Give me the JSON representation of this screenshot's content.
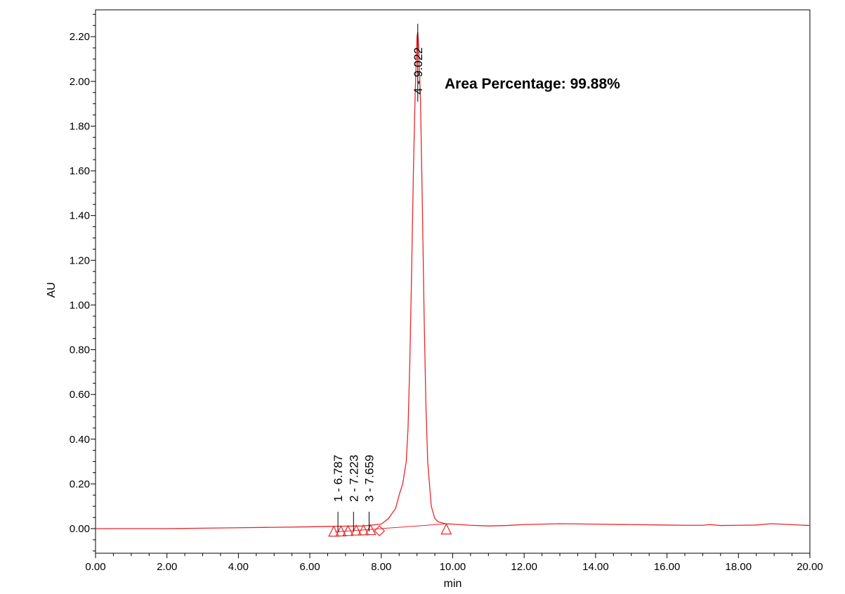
{
  "chart_data": {
    "type": "line",
    "title": "",
    "xlabel": "min",
    "ylabel": "AU",
    "xlim": [
      0,
      20
    ],
    "ylim": [
      -0.11,
      2.32
    ],
    "x_ticks": [
      0,
      2,
      4,
      6,
      8,
      10,
      12,
      14,
      16,
      18,
      20
    ],
    "x_tick_labels": [
      "0.00",
      "2.00",
      "4.00",
      "6.00",
      "8.00",
      "10.00",
      "12.00",
      "14.00",
      "16.00",
      "18.00",
      "20.00"
    ],
    "y_ticks": [
      0,
      0.2,
      0.4,
      0.6,
      0.8,
      1.0,
      1.2,
      1.4,
      1.6,
      1.8,
      2.0,
      2.2
    ],
    "y_tick_labels": [
      "0.00",
      "0.20",
      "0.40",
      "0.60",
      "0.80",
      "1.00",
      "1.20",
      "1.40",
      "1.60",
      "1.80",
      "2.00",
      "2.20"
    ],
    "grid": false,
    "line_color": "#e8262a",
    "series": [
      {
        "name": "",
        "x": [
          0,
          1,
          2,
          3,
          4,
          5,
          6,
          6.5,
          7,
          7.5,
          8,
          8.2,
          8.4,
          8.5,
          8.6,
          8.7,
          8.75,
          8.8,
          8.85,
          8.9,
          8.95,
          9.0,
          9.022,
          9.05,
          9.1,
          9.15,
          9.2,
          9.25,
          9.3,
          9.4,
          9.5,
          9.6,
          9.8,
          10,
          10.5,
          11,
          11.5,
          12,
          13,
          14,
          15,
          16,
          16.5,
          17,
          17.2,
          17.5,
          18,
          18.5,
          18.9,
          19.2,
          19.6,
          20
        ],
        "y": [
          0.0,
          0.0,
          0.0,
          0.002,
          0.004,
          0.006,
          0.008,
          0.01,
          0.011,
          0.012,
          0.02,
          0.045,
          0.09,
          0.15,
          0.2,
          0.3,
          0.45,
          0.75,
          1.15,
          1.6,
          1.95,
          2.2,
          2.22,
          2.15,
          1.9,
          1.45,
          0.95,
          0.55,
          0.3,
          0.1,
          0.045,
          0.03,
          0.022,
          0.02,
          0.015,
          0.012,
          0.014,
          0.018,
          0.022,
          0.02,
          0.018,
          0.016,
          0.015,
          0.015,
          0.018,
          0.014,
          0.015,
          0.016,
          0.022,
          0.02,
          0.017,
          0.014
        ]
      }
    ],
    "baseline": {
      "x": [
        6.7,
        9.85
      ],
      "y": [
        -0.015,
        0.022
      ]
    },
    "peaks": [
      {
        "label": "1 - 6.787",
        "rt": 6.787,
        "apex": 0.011
      },
      {
        "label": "2 - 7.223",
        "rt": 7.223,
        "apex": 0.012
      },
      {
        "label": "3 - 7.659",
        "rt": 7.659,
        "apex": 0.013
      },
      {
        "label": "4 - 9.022",
        "rt": 9.022,
        "apex": 2.22
      }
    ],
    "markers": [
      {
        "shape": "triangle",
        "x": 6.67,
        "y": -0.015
      },
      {
        "shape": "triangle",
        "x": 6.87,
        "y": -0.014
      },
      {
        "shape": "triangle",
        "x": 7.07,
        "y": -0.012
      },
      {
        "shape": "triangle",
        "x": 7.3,
        "y": -0.01
      },
      {
        "shape": "triangle",
        "x": 7.5,
        "y": -0.009
      },
      {
        "shape": "triangle",
        "x": 7.7,
        "y": -0.008
      },
      {
        "shape": "diamond",
        "x": 7.95,
        "y": -0.01
      },
      {
        "shape": "triangle",
        "x": 9.82,
        "y": -0.005
      }
    ],
    "annotation": "Area Percentage: 99.88%"
  }
}
